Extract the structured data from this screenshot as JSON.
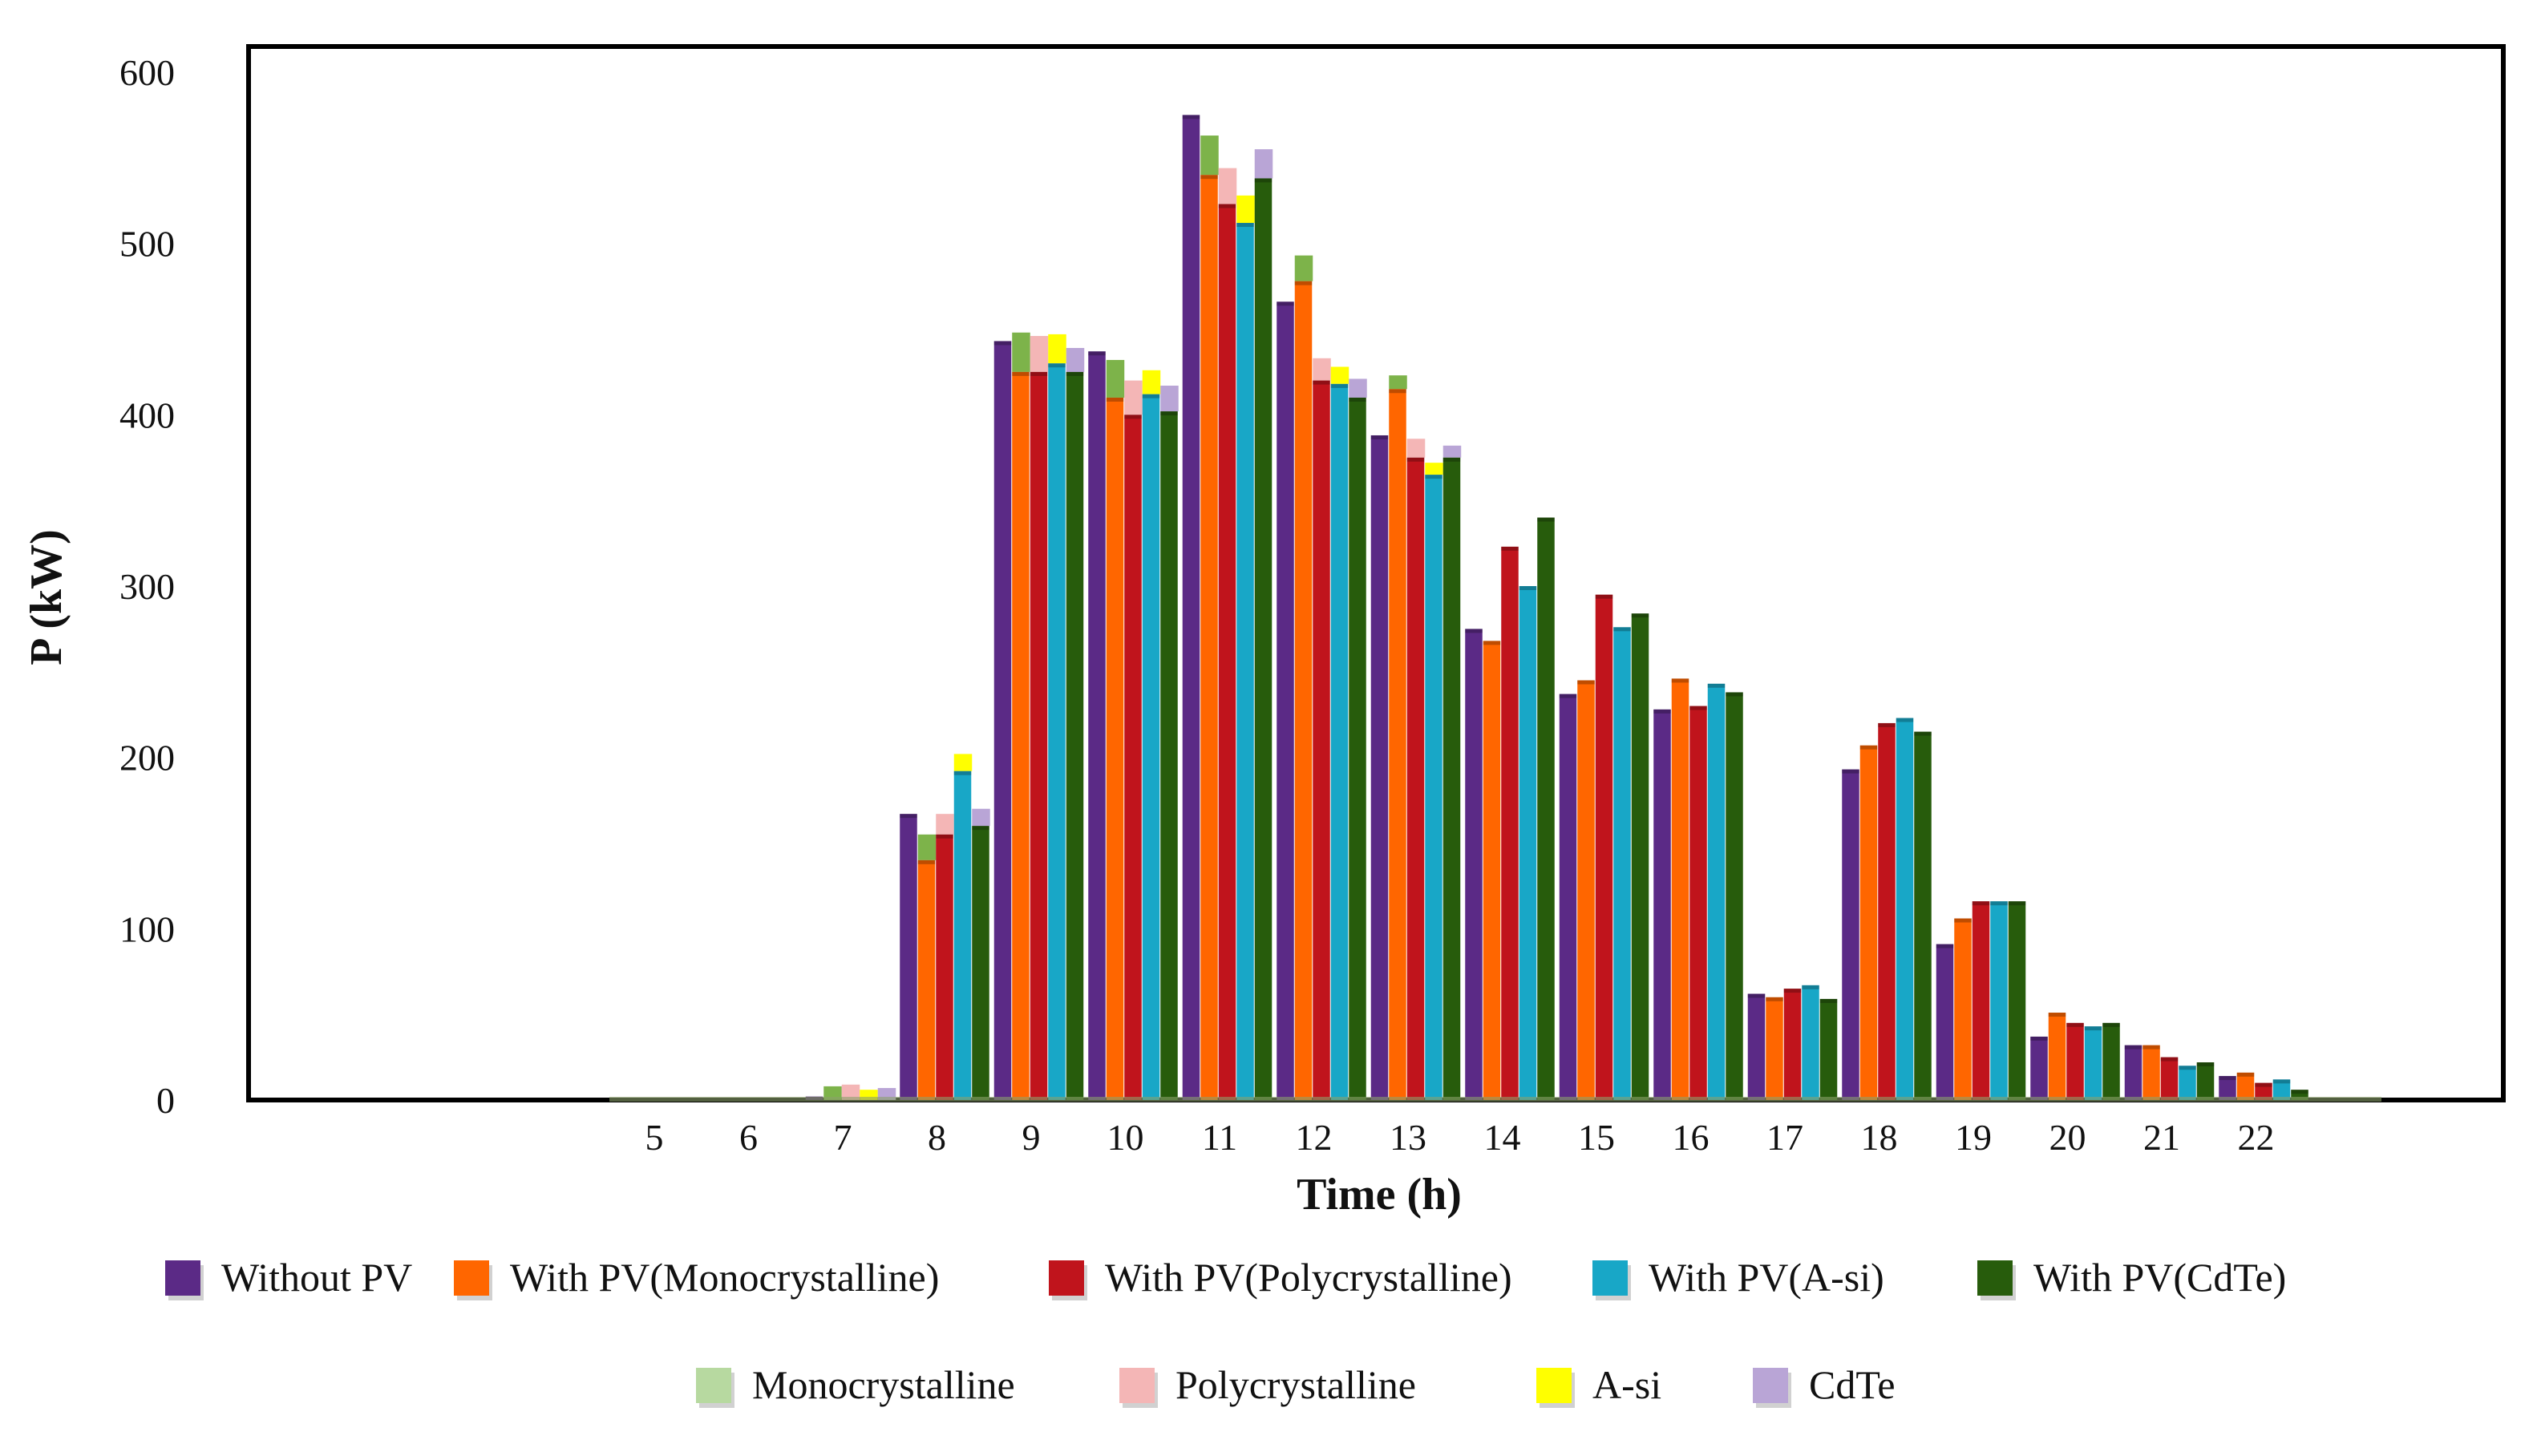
{
  "chart_data": {
    "type": "bar",
    "title": "",
    "xlabel": "Time (h)",
    "ylabel": "P (kW)",
    "ylim": [
      0,
      600
    ],
    "yticks": [
      0,
      100,
      200,
      300,
      400,
      500,
      600
    ],
    "categories": [
      "5",
      "6",
      "7",
      "8",
      "9",
      "10",
      "11",
      "12",
      "13",
      "14",
      "15",
      "16",
      "17",
      "18",
      "19",
      "20",
      "21",
      "22"
    ],
    "series": [
      {
        "name": "Without  PV",
        "color": "#5B2A86",
        "values": [
          0,
          0,
          2,
          167,
          443,
          437,
          575,
          466,
          388,
          275,
          237,
          228,
          62,
          193,
          91,
          37,
          32,
          14
        ]
      },
      {
        "name": "With PV(Monocrystalline)",
        "color": "#FF6600",
        "values": [
          0,
          0,
          0,
          140,
          425,
          410,
          540,
          478,
          415,
          268,
          245,
          246,
          60,
          207,
          106,
          51,
          32,
          16
        ]
      },
      {
        "name": "With PV(Polycrystalline)",
        "color": "#C0141C",
        "values": [
          0,
          0,
          0,
          155,
          425,
          400,
          523,
          420,
          375,
          323,
          295,
          230,
          65,
          220,
          116,
          45,
          25,
          10
        ]
      },
      {
        "name": "With PV(A-si)",
        "color": "#18A7C7",
        "values": [
          0,
          0,
          0,
          192,
          430,
          412,
          512,
          418,
          365,
          300,
          276,
          243,
          67,
          223,
          116,
          43,
          20,
          12
        ]
      },
      {
        "name": "With PV(CdTe)",
        "color": "#275C0C",
        "values": [
          0,
          0,
          0,
          160,
          425,
          402,
          538,
          410,
          375,
          340,
          284,
          238,
          59,
          215,
          116,
          45,
          22,
          6
        ]
      }
    ],
    "overlays": [
      {
        "name": "Monocrystalline",
        "color": "#7DB34A",
        "legend_color": "#B7D9A0",
        "values": [
          0,
          0,
          8,
          155,
          448,
          432,
          563,
          493,
          423,
          0,
          0,
          0,
          0,
          0,
          0,
          0,
          0,
          0
        ]
      },
      {
        "name": "Polycrystalline",
        "color": "#F4B6B6",
        "legend_color": "#F4B6B6",
        "values": [
          0,
          0,
          9,
          167,
          446,
          420,
          544,
          433,
          386,
          0,
          0,
          0,
          0,
          0,
          0,
          0,
          0,
          0
        ]
      },
      {
        "name": "A-si",
        "color": "#FFFF00",
        "legend_color": "#FFFF00",
        "values": [
          0,
          0,
          6,
          202,
          447,
          426,
          528,
          428,
          372,
          0,
          0,
          0,
          0,
          0,
          0,
          0,
          0,
          0
        ]
      },
      {
        "name": "CdTe",
        "color": "#B9A5D6",
        "legend_color": "#B9A5D6",
        "values": [
          0,
          0,
          7,
          170,
          439,
          417,
          555,
          421,
          382,
          0,
          0,
          0,
          0,
          0,
          0,
          0,
          0,
          0
        ]
      }
    ]
  }
}
